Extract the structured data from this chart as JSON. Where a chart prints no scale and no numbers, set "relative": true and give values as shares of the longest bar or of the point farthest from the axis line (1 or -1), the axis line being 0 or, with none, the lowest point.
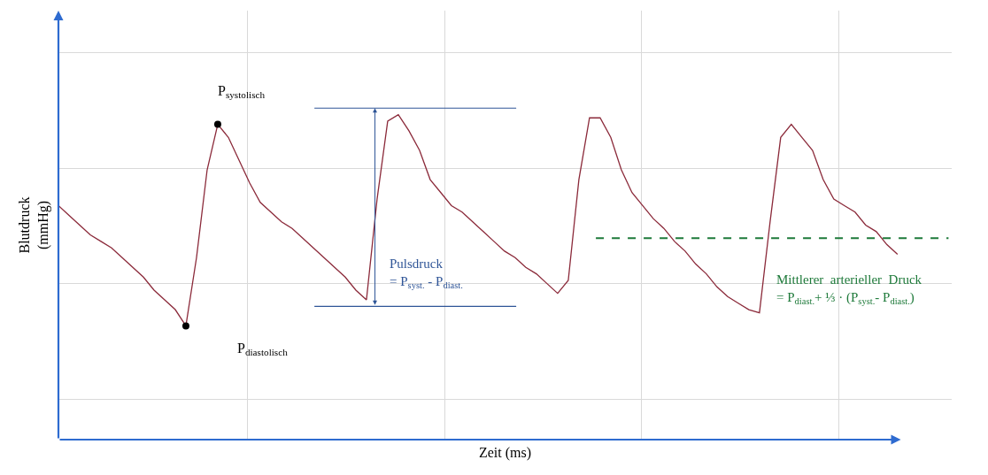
{
  "chart_data": {
    "type": "line",
    "relative": true,
    "xlabel": "Zeit (ms)",
    "ylabel": "Blutdruck\n(mmHg)",
    "grid": true,
    "marker": "none",
    "line_style": "solid",
    "categories": [
      null,
      null,
      null,
      null,
      null,
      null,
      null,
      null,
      null,
      null,
      null,
      null,
      null,
      null,
      null,
      null,
      null,
      null,
      null,
      null,
      null,
      null,
      null,
      null,
      null,
      null,
      null,
      null,
      null,
      null,
      null,
      null,
      null,
      null,
      null,
      null,
      null,
      null,
      null,
      null,
      null,
      null,
      null,
      null,
      null,
      null,
      null,
      null,
      null,
      null,
      null,
      null,
      null,
      null,
      null,
      null,
      null,
      null,
      null,
      null,
      null,
      null,
      null,
      null,
      null,
      null,
      null,
      null,
      null,
      null,
      null,
      null,
      null,
      null,
      null,
      null,
      null,
      null,
      null,
      null
    ],
    "series": [
      {
        "color": "#8b2a3a",
        "values": [
          0.72,
          0.69,
          0.66,
          0.63,
          0.61,
          0.59,
          0.56,
          0.53,
          0.5,
          0.46,
          0.43,
          0.4,
          0.35,
          0.56,
          0.83,
          0.97,
          0.93,
          0.86,
          0.79,
          0.73,
          0.7,
          0.67,
          0.65,
          0.62,
          0.59,
          0.56,
          0.53,
          0.5,
          0.46,
          0.43,
          0.74,
          0.98,
          1,
          0.95,
          0.89,
          0.8,
          0.76,
          0.72,
          0.7,
          0.67,
          0.64,
          0.61,
          0.58,
          0.56,
          0.53,
          0.51,
          0.48,
          0.45,
          0.49,
          0.8,
          0.99,
          0.99,
          0.93,
          0.83,
          0.76,
          0.72,
          0.68,
          0.65,
          0.61,
          0.58,
          0.54,
          0.51,
          0.47,
          0.44,
          0.42,
          0.4,
          0.39,
          0.67,
          0.93,
          0.97,
          0.93,
          0.89,
          0.8,
          0.74,
          0.72,
          0.7,
          0.66,
          0.64,
          0.6,
          0.57
        ]
      }
    ],
    "ref_lines": [
      {
        "axis": "y",
        "value": 1.02,
        "color": "#2f5597",
        "line_style": "solid"
      },
      {
        "axis": "y",
        "value": 0.41,
        "color": "#2f5597",
        "line_style": "solid"
      },
      {
        "axis": "y",
        "value": 0.62,
        "color": "#1e7a3a",
        "line_style": "dashed"
      }
    ],
    "annotations": [
      "P$_{systolisch}$",
      "P$_{diastolisch}$",
      "Pulsdruck\n= P$_{syst.}$ - P$_{diast.}$",
      "Mittlerer  arterieller  Druck\n= P$_{diast.}$+ ⅓ · (P$_{syst.}$- P$_{diast.}$)"
    ]
  }
}
